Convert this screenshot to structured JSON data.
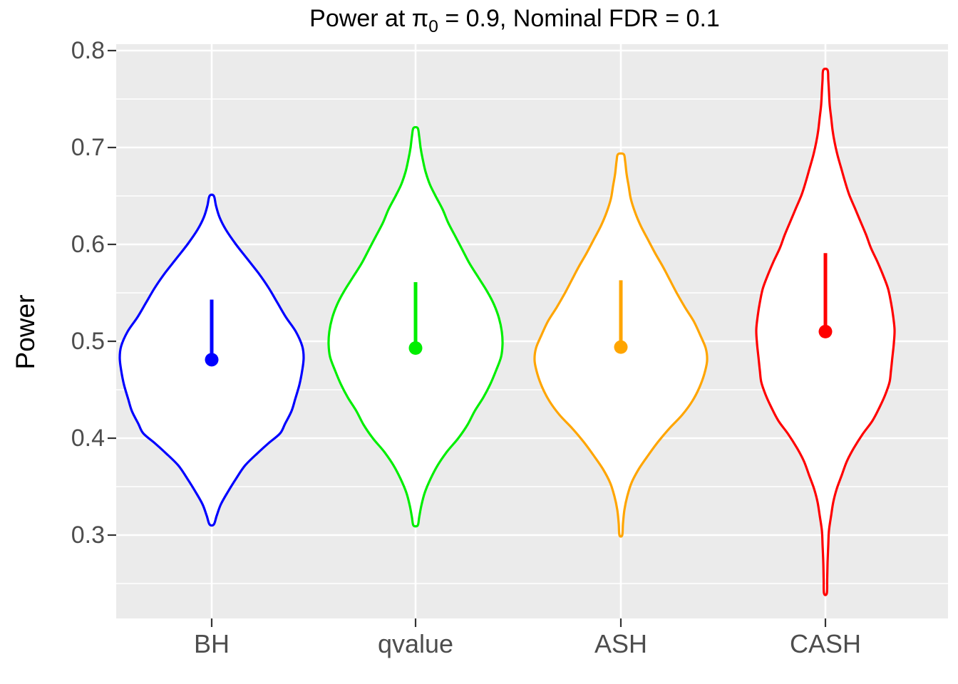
{
  "title": {
    "prefix": "Power at ",
    "pi": "π",
    "pi_sub": "0",
    "suffix": " = 0.9, Nominal FDR = 0.1",
    "full": "Power at π0 = 0.9, Nominal FDR = 0.1"
  },
  "y_axis": {
    "label": "Power",
    "tick_labels": [
      "0.8",
      "0.7",
      "0.6",
      "0.5",
      "0.4",
      "0.3"
    ],
    "tick_values": [
      0.8,
      0.7,
      0.6,
      0.5,
      0.4,
      0.3
    ],
    "minor_tick_values": [
      0.75,
      0.65,
      0.55,
      0.45,
      0.35,
      0.25
    ]
  },
  "x_axis": {
    "categories": [
      "BH",
      "qvalue",
      "ASH",
      "CASH"
    ]
  },
  "panel": {
    "background_color": "#EBEBEB",
    "gridline_color": "#FFFFFF",
    "violin_fill": "#FFFFFF",
    "tick_mark_color": "#333333",
    "tick_label_color": "#4D4D4D"
  },
  "chart_data": {
    "type": "violin",
    "title": "Power at π0 = 0.9, Nominal FDR = 0.1",
    "xlabel": "",
    "ylabel": "Power",
    "ylim": [
      0.213,
      0.807
    ],
    "y_major_ticks": [
      0.3,
      0.4,
      0.5,
      0.6,
      0.7,
      0.8
    ],
    "y_minor_ticks": [
      0.25,
      0.35,
      0.45,
      0.55,
      0.65,
      0.75
    ],
    "grid": "white major+minor horizontal lines and major vertical lines on gray panel",
    "legend_position": "none",
    "categories": [
      "BH",
      "qvalue",
      "ASH",
      "CASH"
    ],
    "series": [
      {
        "name": "BH",
        "color": "#0000FF",
        "mean_point": 0.481,
        "summary_line_top": 0.543,
        "min": 0.31,
        "max": 0.65,
        "density_profile": [
          [
            0.65,
            3
          ],
          [
            0.64,
            6
          ],
          [
            0.628,
            11
          ],
          [
            0.615,
            20
          ],
          [
            0.6,
            34
          ],
          [
            0.585,
            50
          ],
          [
            0.57,
            66
          ],
          [
            0.555,
            80
          ],
          [
            0.54,
            92
          ],
          [
            0.525,
            104
          ],
          [
            0.51,
            118
          ],
          [
            0.495,
            127
          ],
          [
            0.483,
            129
          ],
          [
            0.47,
            127
          ],
          [
            0.455,
            123
          ],
          [
            0.44,
            117
          ],
          [
            0.428,
            112
          ],
          [
            0.415,
            103
          ],
          [
            0.405,
            96
          ],
          [
            0.395,
            80
          ],
          [
            0.385,
            65
          ],
          [
            0.372,
            47
          ],
          [
            0.358,
            34
          ],
          [
            0.345,
            23
          ],
          [
            0.332,
            13
          ],
          [
            0.32,
            7
          ],
          [
            0.311,
            3
          ]
        ]
      },
      {
        "name": "qvalue",
        "color": "#00EE00",
        "mean_point": 0.493,
        "summary_line_top": 0.561,
        "min": 0.31,
        "max": 0.72,
        "density_profile": [
          [
            0.72,
            3
          ],
          [
            0.712,
            5
          ],
          [
            0.7,
            7
          ],
          [
            0.688,
            10
          ],
          [
            0.675,
            14
          ],
          [
            0.662,
            20
          ],
          [
            0.65,
            28
          ],
          [
            0.636,
            38
          ],
          [
            0.622,
            46
          ],
          [
            0.608,
            56
          ],
          [
            0.594,
            66
          ],
          [
            0.58,
            76
          ],
          [
            0.566,
            88
          ],
          [
            0.552,
            100
          ],
          [
            0.538,
            110
          ],
          [
            0.524,
            117
          ],
          [
            0.51,
            121
          ],
          [
            0.497,
            122
          ],
          [
            0.484,
            120
          ],
          [
            0.47,
            113
          ],
          [
            0.456,
            105
          ],
          [
            0.442,
            95
          ],
          [
            0.428,
            83
          ],
          [
            0.414,
            73
          ],
          [
            0.4,
            60
          ],
          [
            0.386,
            44
          ],
          [
            0.372,
            31
          ],
          [
            0.358,
            21
          ],
          [
            0.344,
            13
          ],
          [
            0.33,
            8
          ],
          [
            0.318,
            5
          ],
          [
            0.31,
            3
          ]
        ]
      },
      {
        "name": "ASH",
        "color": "#FFA500",
        "mean_point": 0.494,
        "summary_line_top": 0.563,
        "min": 0.3,
        "max": 0.69,
        "density_profile": [
          [
            0.693,
            4
          ],
          [
            0.686,
            6
          ],
          [
            0.673,
            8
          ],
          [
            0.66,
            11
          ],
          [
            0.647,
            14
          ],
          [
            0.633,
            20
          ],
          [
            0.619,
            28
          ],
          [
            0.605,
            38
          ],
          [
            0.591,
            48
          ],
          [
            0.577,
            59
          ],
          [
            0.563,
            69
          ],
          [
            0.549,
            79
          ],
          [
            0.535,
            90
          ],
          [
            0.521,
            102
          ],
          [
            0.507,
            111
          ],
          [
            0.493,
            119
          ],
          [
            0.48,
            121
          ],
          [
            0.466,
            117
          ],
          [
            0.452,
            110
          ],
          [
            0.438,
            100
          ],
          [
            0.424,
            86
          ],
          [
            0.41,
            68
          ],
          [
            0.396,
            52
          ],
          [
            0.382,
            38
          ],
          [
            0.368,
            25
          ],
          [
            0.354,
            15
          ],
          [
            0.34,
            9
          ],
          [
            0.326,
            5
          ],
          [
            0.312,
            3
          ],
          [
            0.3,
            2
          ]
        ]
      },
      {
        "name": "CASH",
        "color": "#FF0000",
        "mean_point": 0.51,
        "summary_line_top": 0.591,
        "min": 0.24,
        "max": 0.78,
        "density_profile": [
          [
            0.78,
            3
          ],
          [
            0.77,
            4
          ],
          [
            0.757,
            5
          ],
          [
            0.744,
            6
          ],
          [
            0.731,
            8
          ],
          [
            0.718,
            10
          ],
          [
            0.705,
            13
          ],
          [
            0.692,
            17
          ],
          [
            0.679,
            22
          ],
          [
            0.666,
            27
          ],
          [
            0.652,
            33
          ],
          [
            0.638,
            41
          ],
          [
            0.624,
            49
          ],
          [
            0.61,
            57
          ],
          [
            0.596,
            64
          ],
          [
            0.582,
            73
          ],
          [
            0.568,
            81
          ],
          [
            0.554,
            88
          ],
          [
            0.54,
            92
          ],
          [
            0.526,
            95
          ],
          [
            0.512,
            97
          ],
          [
            0.498,
            96
          ],
          [
            0.484,
            94
          ],
          [
            0.47,
            92
          ],
          [
            0.458,
            90
          ],
          [
            0.445,
            84
          ],
          [
            0.432,
            76
          ],
          [
            0.418,
            66
          ],
          [
            0.404,
            52
          ],
          [
            0.39,
            40
          ],
          [
            0.376,
            30
          ],
          [
            0.362,
            23
          ],
          [
            0.348,
            16
          ],
          [
            0.334,
            11
          ],
          [
            0.32,
            8
          ],
          [
            0.305,
            5
          ],
          [
            0.29,
            4
          ],
          [
            0.272,
            3
          ],
          [
            0.255,
            2.5
          ],
          [
            0.24,
            2
          ]
        ]
      }
    ]
  }
}
